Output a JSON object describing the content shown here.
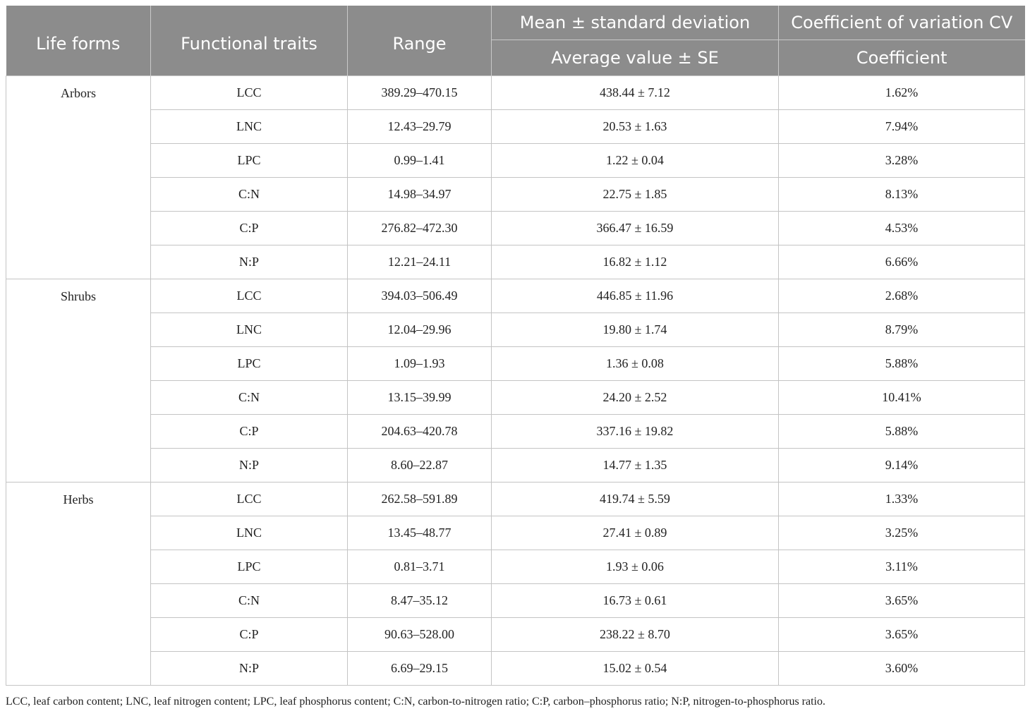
{
  "header": {
    "col1": "Life forms",
    "col2": "Functional traits",
    "col3": "Range",
    "col4": "Mean ± standard deviation",
    "col4_sub": "Average value ± SE",
    "col5": "Coefficient of variation CV",
    "col5_sub": "Coefficient"
  },
  "groups": [
    {
      "life_form": "Arbors",
      "rows": [
        {
          "trait": "LCC",
          "range": "389.29–470.15",
          "mean": "438.44 ± 7.12",
          "cv": "1.62%"
        },
        {
          "trait": "LNC",
          "range": "12.43–29.79",
          "mean": "20.53 ± 1.63",
          "cv": "7.94%"
        },
        {
          "trait": "LPC",
          "range": "0.99–1.41",
          "mean": "1.22 ± 0.04",
          "cv": "3.28%"
        },
        {
          "trait": "C:N",
          "range": "14.98–34.97",
          "mean": "22.75 ± 1.85",
          "cv": "8.13%"
        },
        {
          "trait": "C:P",
          "range": "276.82–472.30",
          "mean": "366.47 ± 16.59",
          "cv": "4.53%"
        },
        {
          "trait": "N:P",
          "range": "12.21–24.11",
          "mean": "16.82 ± 1.12",
          "cv": "6.66%"
        }
      ]
    },
    {
      "life_form": "Shrubs",
      "rows": [
        {
          "trait": "LCC",
          "range": "394.03–506.49",
          "mean": "446.85 ± 11.96",
          "cv": "2.68%"
        },
        {
          "trait": "LNC",
          "range": "12.04–29.96",
          "mean": "19.80 ± 1.74",
          "cv": "8.79%"
        },
        {
          "trait": "LPC",
          "range": "1.09–1.93",
          "mean": "1.36 ± 0.08",
          "cv": "5.88%"
        },
        {
          "trait": "C:N",
          "range": "13.15–39.99",
          "mean": "24.20 ± 2.52",
          "cv": "10.41%"
        },
        {
          "trait": "C:P",
          "range": "204.63–420.78",
          "mean": "337.16 ± 19.82",
          "cv": "5.88%"
        },
        {
          "trait": "N:P",
          "range": "8.60–22.87",
          "mean": "14.77 ± 1.35",
          "cv": "9.14%"
        }
      ]
    },
    {
      "life_form": "Herbs",
      "rows": [
        {
          "trait": "LCC",
          "range": "262.58–591.89",
          "mean": "419.74 ± 5.59",
          "cv": "1.33%"
        },
        {
          "trait": "LNC",
          "range": "13.45–48.77",
          "mean": "27.41 ± 0.89",
          "cv": "3.25%"
        },
        {
          "trait": "LPC",
          "range": "0.81–3.71",
          "mean": "1.93 ± 0.06",
          "cv": "3.11%"
        },
        {
          "trait": "C:N",
          "range": "8.47–35.12",
          "mean": "16.73 ± 0.61",
          "cv": "3.65%"
        },
        {
          "trait": "C:P",
          "range": "90.63–528.00",
          "mean": "238.22 ± 8.70",
          "cv": "3.65%"
        },
        {
          "trait": "N:P",
          "range": "6.69–29.15",
          "mean": "15.02 ± 0.54",
          "cv": "3.60%"
        }
      ]
    }
  ],
  "footnote": "LCC, leaf carbon content; LNC, leaf nitrogen content; LPC, leaf phosphorus content; C:N, carbon-to-nitrogen ratio; C:P, carbon–phosphorus ratio; N:P, nitrogen-to-phosphorus ratio."
}
